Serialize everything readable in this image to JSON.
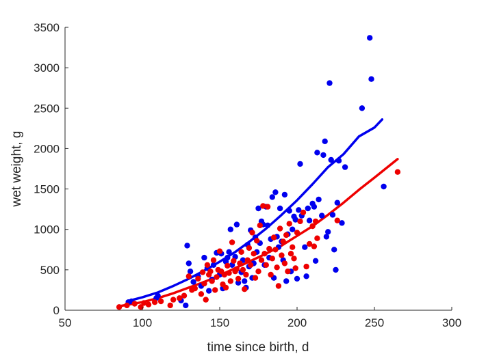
{
  "chart_data": {
    "type": "scatter",
    "title": "",
    "xlabel": "time since birth, d",
    "ylabel": "wet weight, g",
    "xlim": [
      50,
      300
    ],
    "ylim": [
      0,
      3500
    ],
    "xticks": [
      50,
      100,
      150,
      200,
      250,
      300
    ],
    "yticks": [
      0,
      500,
      1000,
      1500,
      2000,
      2500,
      3000,
      3500
    ],
    "grid": false,
    "legend": "none",
    "series": [
      {
        "color": "#0000ee",
        "points": [
          [
            91,
            100
          ],
          [
            93,
            110
          ],
          [
            109,
            150
          ],
          [
            110,
            180
          ],
          [
            125,
            120
          ],
          [
            128,
            60
          ],
          [
            129,
            800
          ],
          [
            130,
            580
          ],
          [
            131,
            480
          ],
          [
            133,
            350
          ],
          [
            136,
            420
          ],
          [
            138,
            300
          ],
          [
            140,
            650
          ],
          [
            142,
            520
          ],
          [
            143,
            240
          ],
          [
            145,
            380
          ],
          [
            146,
            560
          ],
          [
            148,
            710
          ],
          [
            150,
            440
          ],
          [
            151,
            700
          ],
          [
            152,
            270
          ],
          [
            154,
            600
          ],
          [
            155,
            650
          ],
          [
            156,
            720
          ],
          [
            157,
            1000
          ],
          [
            158,
            560
          ],
          [
            160,
            660
          ],
          [
            161,
            1060
          ],
          [
            162,
            340
          ],
          [
            164,
            470
          ],
          [
            165,
            620
          ],
          [
            166,
            360
          ],
          [
            167,
            280
          ],
          [
            168,
            810
          ],
          [
            169,
            540
          ],
          [
            170,
            990
          ],
          [
            171,
            400
          ],
          [
            172,
            580
          ],
          [
            173,
            900
          ],
          [
            174,
            720
          ],
          [
            175,
            1260
          ],
          [
            176,
            830
          ],
          [
            177,
            1100
          ],
          [
            178,
            1060
          ],
          [
            179,
            560
          ],
          [
            180,
            1280
          ],
          [
            181,
            1050
          ],
          [
            182,
            650
          ],
          [
            183,
            880
          ],
          [
            184,
            1400
          ],
          [
            185,
            400
          ],
          [
            186,
            1460
          ],
          [
            187,
            910
          ],
          [
            188,
            780
          ],
          [
            189,
            1260
          ],
          [
            190,
            850
          ],
          [
            191,
            620
          ],
          [
            192,
            1430
          ],
          [
            193,
            360
          ],
          [
            194,
            940
          ],
          [
            195,
            1230
          ],
          [
            196,
            480
          ],
          [
            197,
            1000
          ],
          [
            198,
            1160
          ],
          [
            199,
            1120
          ],
          [
            200,
            390
          ],
          [
            201,
            1240
          ],
          [
            202,
            1810
          ],
          [
            203,
            1170
          ],
          [
            205,
            780
          ],
          [
            206,
            420
          ],
          [
            207,
            1260
          ],
          [
            208,
            1110
          ],
          [
            210,
            1320
          ],
          [
            211,
            1280
          ],
          [
            212,
            610
          ],
          [
            213,
            1950
          ],
          [
            214,
            1370
          ],
          [
            216,
            1170
          ],
          [
            217,
            1920
          ],
          [
            218,
            2090
          ],
          [
            219,
            910
          ],
          [
            220,
            970
          ],
          [
            221,
            2810
          ],
          [
            222,
            1860
          ],
          [
            223,
            1180
          ],
          [
            224,
            750
          ],
          [
            225,
            500
          ],
          [
            226,
            1330
          ],
          [
            227,
            1850
          ],
          [
            229,
            1080
          ],
          [
            231,
            1770
          ],
          [
            242,
            2500
          ],
          [
            247,
            3370
          ],
          [
            248,
            2860
          ],
          [
            256,
            1530
          ]
        ]
      },
      {
        "color": "#ee0000",
        "points": [
          [
            85,
            40
          ],
          [
            90,
            60
          ],
          [
            95,
            80
          ],
          [
            99,
            40
          ],
          [
            101,
            90
          ],
          [
            104,
            70
          ],
          [
            108,
            100
          ],
          [
            112,
            110
          ],
          [
            118,
            60
          ],
          [
            120,
            130
          ],
          [
            124,
            150
          ],
          [
            127,
            180
          ],
          [
            130,
            420
          ],
          [
            132,
            250
          ],
          [
            134,
            270
          ],
          [
            136,
            390
          ],
          [
            138,
            200
          ],
          [
            139,
            470
          ],
          [
            140,
            330
          ],
          [
            141,
            130
          ],
          [
            142,
            560
          ],
          [
            143,
            440
          ],
          [
            144,
            480
          ],
          [
            145,
            360
          ],
          [
            146,
            620
          ],
          [
            147,
            250
          ],
          [
            148,
            410
          ],
          [
            149,
            500
          ],
          [
            150,
            730
          ],
          [
            151,
            480
          ],
          [
            152,
            320
          ],
          [
            153,
            440
          ],
          [
            154,
            280
          ],
          [
            155,
            550
          ],
          [
            156,
            460
          ],
          [
            157,
            360
          ],
          [
            158,
            840
          ],
          [
            159,
            610
          ],
          [
            160,
            480
          ],
          [
            161,
            510
          ],
          [
            162,
            390
          ],
          [
            163,
            580
          ],
          [
            164,
            720
          ],
          [
            165,
            500
          ],
          [
            166,
            260
          ],
          [
            167,
            440
          ],
          [
            168,
            620
          ],
          [
            169,
            770
          ],
          [
            170,
            560
          ],
          [
            171,
            960
          ],
          [
            172,
            700
          ],
          [
            173,
            400
          ],
          [
            174,
            860
          ],
          [
            175,
            480
          ],
          [
            176,
            1050
          ],
          [
            177,
            620
          ],
          [
            178,
            1290
          ],
          [
            179,
            700
          ],
          [
            180,
            560
          ],
          [
            181,
            1280
          ],
          [
            182,
            760
          ],
          [
            183,
            440
          ],
          [
            184,
            640
          ],
          [
            185,
            900
          ],
          [
            186,
            750
          ],
          [
            187,
            530
          ],
          [
            188,
            300
          ],
          [
            189,
            1010
          ],
          [
            190,
            680
          ],
          [
            191,
            850
          ],
          [
            192,
            580
          ],
          [
            193,
            930
          ],
          [
            194,
            480
          ],
          [
            195,
            1070
          ],
          [
            196,
            700
          ],
          [
            197,
            780
          ],
          [
            198,
            640
          ],
          [
            199,
            520
          ],
          [
            200,
            960
          ],
          [
            202,
            1100
          ],
          [
            204,
            1210
          ],
          [
            206,
            540
          ],
          [
            208,
            820
          ],
          [
            210,
            1040
          ],
          [
            211,
            790
          ],
          [
            212,
            1100
          ],
          [
            213,
            890
          ],
          [
            226,
            1110
          ],
          [
            265,
            1710
          ]
        ]
      }
    ],
    "fits": [
      {
        "color": "#0000ee",
        "x": [
          90,
          100,
          110,
          120,
          130,
          140,
          150,
          160,
          170,
          180,
          190,
          200,
          210,
          220,
          230,
          240,
          250,
          255
        ],
        "y": [
          110,
          160,
          220,
          300,
          390,
          490,
          600,
          720,
          860,
          1010,
          1180,
          1360,
          1560,
          1770,
          1930,
          2150,
          2260,
          2360
        ]
      },
      {
        "color": "#ee0000",
        "x": [
          85,
          100,
          110,
          120,
          130,
          140,
          150,
          160,
          170,
          180,
          190,
          200,
          210,
          220,
          230,
          240,
          250,
          265
        ],
        "y": [
          50,
          100,
          150,
          210,
          280,
          350,
          430,
          520,
          610,
          700,
          800,
          920,
          1040,
          1180,
          1330,
          1490,
          1640,
          1870
        ]
      }
    ]
  }
}
